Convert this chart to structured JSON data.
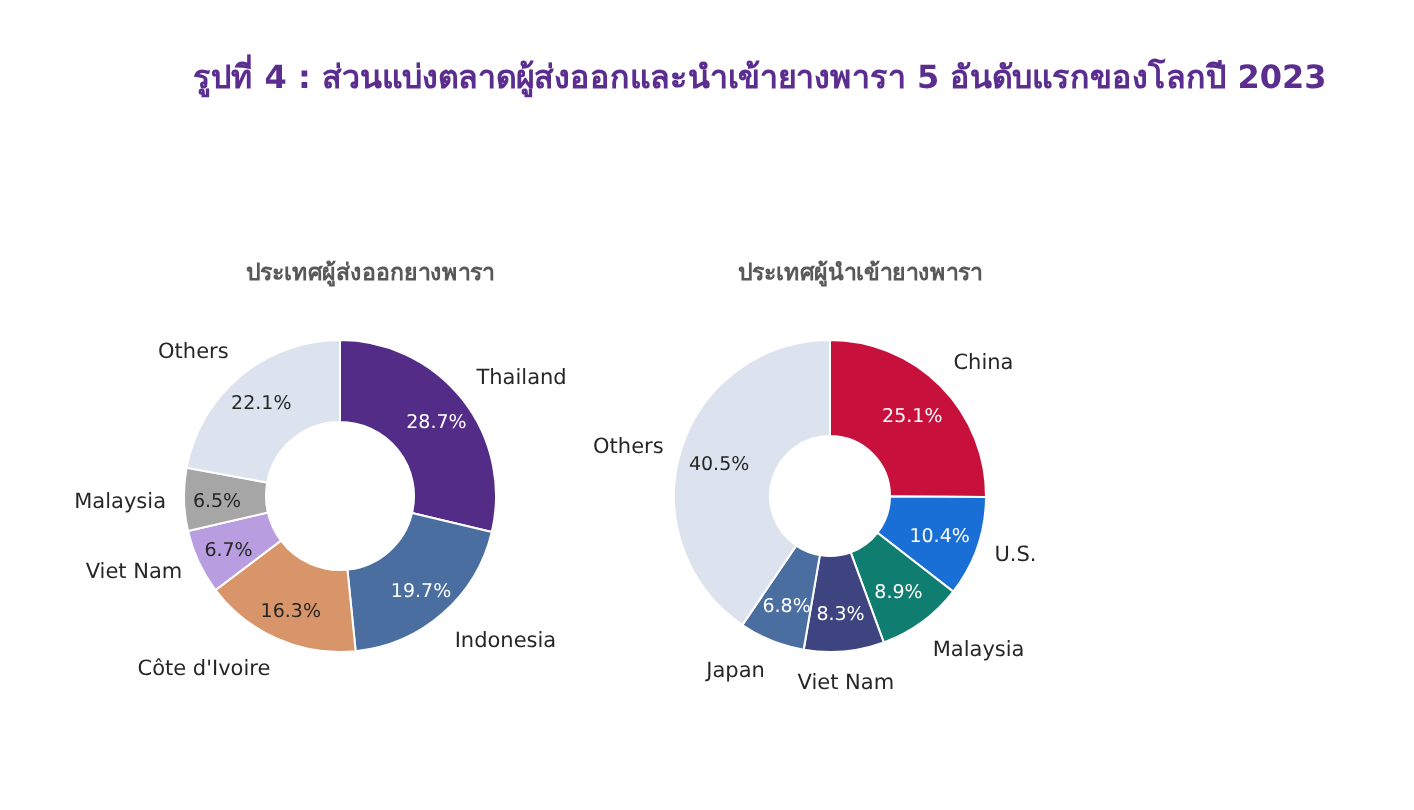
{
  "chart_data": [
    {
      "type": "donut",
      "title": "รูปที่ 4 : ส่วนแบ่งตลาดผู้ส่งออกและนำเข้ายางพารา 5 อันดับแรกของโลกปี 2023",
      "subtitle": "ประเทศผู้ส่งออกยางพารา",
      "categories": [
        "Thailand",
        "Indonesia",
        "Côte d'Ivoire",
        "Viet Nam",
        "Malaysia",
        "Others"
      ],
      "values": [
        28.7,
        19.7,
        16.3,
        6.7,
        6.5,
        22.1
      ],
      "colors": [
        "#532c87",
        "#4a6ea0",
        "#d9956a",
        "#b89ee0",
        "#a6a6a6",
        "#dde3ee"
      ],
      "value_labels": [
        "28.7%",
        "19.7%",
        "16.3%",
        "6.7%",
        "6.5%",
        "22.1%"
      ],
      "legend": false
    },
    {
      "type": "donut",
      "subtitle": "ประเทศผู้นำเข้ายางพารา",
      "categories": [
        "China",
        "U.S.",
        "Malaysia",
        "Viet Nam",
        "Japan",
        "Others"
      ],
      "values": [
        25.1,
        10.4,
        8.9,
        8.3,
        6.8,
        40.5
      ],
      "colors": [
        "#c8103c",
        "#1a6fd6",
        "#0f7d70",
        "#3e4480",
        "#4a6ea0",
        "#dde3ee"
      ],
      "value_labels": [
        "25.1%",
        "10.4%",
        "8.9%",
        "8.3%",
        "6.8%",
        "40.5%"
      ],
      "legend": false
    }
  ]
}
